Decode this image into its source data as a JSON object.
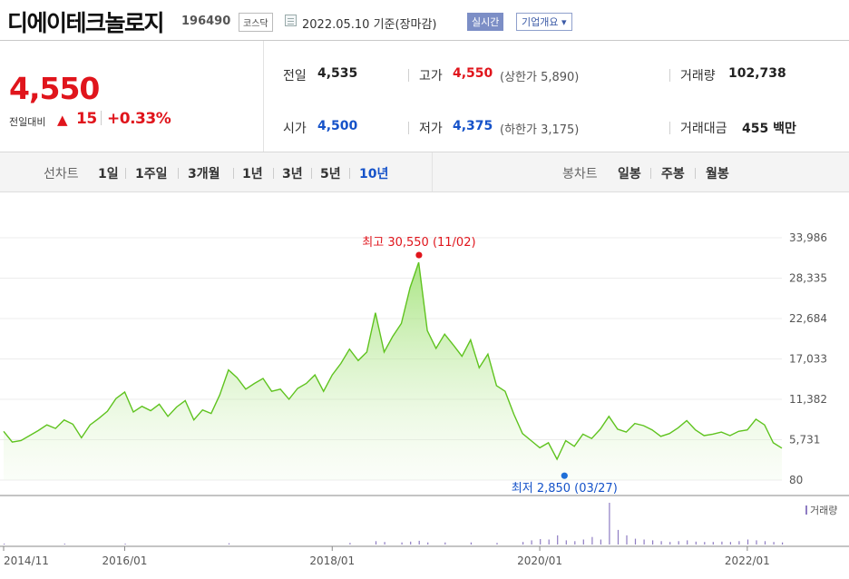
{
  "header": {
    "company": "디에이테크놀로지",
    "code": "196490",
    "market": "코스닥",
    "base_date": "2022.05.10  기준(장마감)",
    "realtime_label": "실시간",
    "company_overview_label": "기업개요 ▾"
  },
  "price": {
    "current": "4,550",
    "change_label": "전일대비",
    "change_arrow": "▲",
    "change_value": "15",
    "change_pct": "+0.33%",
    "color_up": "#e0151c",
    "color_down": "#1552c9"
  },
  "stats": {
    "prev_close": {
      "label": "전일",
      "value": "4,535"
    },
    "open": {
      "label": "시가",
      "value": "4,500"
    },
    "high": {
      "label": "고가",
      "value": "4,550",
      "sub": "(상한가 5,890)"
    },
    "low": {
      "label": "저가",
      "value": "4,375",
      "sub": "(하한가 3,175)"
    },
    "volume": {
      "label": "거래량",
      "value": "102,738"
    },
    "amount": {
      "label": "거래대금",
      "value": "455 백만"
    }
  },
  "periods": {
    "line_label": "선차트",
    "line_items": [
      "1일",
      "1주일",
      "3개월",
      "1년",
      "3년",
      "5년",
      "10년"
    ],
    "selected": "10년",
    "candle_label": "봉차트",
    "candle_items": [
      "일봉",
      "주봉",
      "월봉"
    ]
  },
  "chart_data": {
    "type": "area",
    "series_color": "#5fc31f",
    "y_ticks": [
      "33,986",
      "28,335",
      "22,684",
      "17,033",
      "11,382",
      "5,731",
      "80"
    ],
    "ylim": [
      80,
      33986
    ],
    "x_ticks": [
      "2014/11",
      "2016/01",
      "2018/01",
      "2020/01",
      "2022/01"
    ],
    "x_tick_dates": [
      "2014-11",
      "2016-01",
      "2018-01",
      "2020-01",
      "2022-01"
    ],
    "x_range": [
      "2014-11",
      "2022-05"
    ],
    "max_annotation": "최고 30,550 (11/02)",
    "min_annotation": "최저 2,850 (03/27)",
    "max_point": {
      "date": "2018-11-02",
      "value": 30550
    },
    "min_point": {
      "date": "2020-03-27",
      "value": 2850
    },
    "volume_legend": "거래량",
    "points": [
      [
        "2014-11",
        6900
      ],
      [
        "2014-12",
        5400
      ],
      [
        "2015-01",
        5600
      ],
      [
        "2015-02",
        6300
      ],
      [
        "2015-03",
        7000
      ],
      [
        "2015-04",
        7800
      ],
      [
        "2015-05",
        7300
      ],
      [
        "2015-06",
        8500
      ],
      [
        "2015-07",
        7900
      ],
      [
        "2015-08",
        6000
      ],
      [
        "2015-09",
        7800
      ],
      [
        "2015-10",
        8700
      ],
      [
        "2015-11",
        9700
      ],
      [
        "2015-12",
        11500
      ],
      [
        "2016-01",
        12400
      ],
      [
        "2016-02",
        9600
      ],
      [
        "2016-03",
        10400
      ],
      [
        "2016-04",
        9800
      ],
      [
        "2016-05",
        10700
      ],
      [
        "2016-06",
        9000
      ],
      [
        "2016-07",
        10300
      ],
      [
        "2016-08",
        11200
      ],
      [
        "2016-09",
        8500
      ],
      [
        "2016-10",
        9900
      ],
      [
        "2016-11",
        9400
      ],
      [
        "2016-12",
        12000
      ],
      [
        "2017-01",
        15500
      ],
      [
        "2017-02",
        14400
      ],
      [
        "2017-03",
        12800
      ],
      [
        "2017-04",
        13600
      ],
      [
        "2017-05",
        14300
      ],
      [
        "2017-06",
        12500
      ],
      [
        "2017-07",
        12800
      ],
      [
        "2017-08",
        11400
      ],
      [
        "2017-09",
        12900
      ],
      [
        "2017-10",
        13600
      ],
      [
        "2017-11",
        14800
      ],
      [
        "2017-12",
        12500
      ],
      [
        "2018-01",
        14800
      ],
      [
        "2018-02",
        16400
      ],
      [
        "2018-03",
        18400
      ],
      [
        "2018-04",
        16800
      ],
      [
        "2018-05",
        18000
      ],
      [
        "2018-06",
        23500
      ],
      [
        "2018-07",
        18000
      ],
      [
        "2018-08",
        20200
      ],
      [
        "2018-09",
        22000
      ],
      [
        "2018-10",
        27000
      ],
      [
        "2018-11",
        30550
      ],
      [
        "2018-12",
        21000
      ],
      [
        "2019-01",
        18500
      ],
      [
        "2019-02",
        20500
      ],
      [
        "2019-03",
        19000
      ],
      [
        "2019-04",
        17400
      ],
      [
        "2019-05",
        19700
      ],
      [
        "2019-06",
        15800
      ],
      [
        "2019-07",
        17700
      ],
      [
        "2019-08",
        13300
      ],
      [
        "2019-09",
        12500
      ],
      [
        "2019-10",
        9300
      ],
      [
        "2019-11",
        6600
      ],
      [
        "2019-12",
        5600
      ],
      [
        "2020-01",
        4600
      ],
      [
        "2020-02",
        5300
      ],
      [
        "2020-03",
        3000
      ],
      [
        "2020-04",
        5600
      ],
      [
        "2020-05",
        4800
      ],
      [
        "2020-06",
        6500
      ],
      [
        "2020-07",
        5900
      ],
      [
        "2020-08",
        7200
      ],
      [
        "2020-09",
        9000
      ],
      [
        "2020-10",
        7200
      ],
      [
        "2020-11",
        6800
      ],
      [
        "2020-12",
        8000
      ],
      [
        "2021-01",
        7700
      ],
      [
        "2021-02",
        7100
      ],
      [
        "2021-03",
        6200
      ],
      [
        "2021-04",
        6600
      ],
      [
        "2021-05",
        7400
      ],
      [
        "2021-06",
        8400
      ],
      [
        "2021-07",
        7100
      ],
      [
        "2021-08",
        6300
      ],
      [
        "2021-09",
        6500
      ],
      [
        "2021-10",
        6800
      ],
      [
        "2021-11",
        6300
      ],
      [
        "2021-12",
        6900
      ],
      [
        "2022-01",
        7100
      ],
      [
        "2022-02",
        8600
      ],
      [
        "2022-03",
        7800
      ],
      [
        "2022-04",
        5300
      ],
      [
        "2022-05",
        4550
      ]
    ],
    "volume": [
      [
        "2014-11",
        0.02
      ],
      [
        "2015-06",
        0.02
      ],
      [
        "2016-01",
        0.02
      ],
      [
        "2017-01",
        0.03
      ],
      [
        "2018-03",
        0.04
      ],
      [
        "2018-06",
        0.08
      ],
      [
        "2018-07",
        0.06
      ],
      [
        "2018-09",
        0.05
      ],
      [
        "2018-10",
        0.07
      ],
      [
        "2018-11",
        0.09
      ],
      [
        "2018-12",
        0.05
      ],
      [
        "2019-02",
        0.05
      ],
      [
        "2019-05",
        0.05
      ],
      [
        "2019-08",
        0.04
      ],
      [
        "2019-11",
        0.06
      ],
      [
        "2019-12",
        0.1
      ],
      [
        "2020-01",
        0.13
      ],
      [
        "2020-02",
        0.12
      ],
      [
        "2020-03",
        0.22
      ],
      [
        "2020-04",
        0.1
      ],
      [
        "2020-05",
        0.08
      ],
      [
        "2020-06",
        0.12
      ],
      [
        "2020-07",
        0.18
      ],
      [
        "2020-08",
        0.12
      ],
      [
        "2020-09",
        1.0
      ],
      [
        "2020-10",
        0.35
      ],
      [
        "2020-11",
        0.22
      ],
      [
        "2020-12",
        0.14
      ],
      [
        "2021-01",
        0.12
      ],
      [
        "2021-02",
        0.1
      ],
      [
        "2021-03",
        0.08
      ],
      [
        "2021-04",
        0.06
      ],
      [
        "2021-05",
        0.08
      ],
      [
        "2021-06",
        0.1
      ],
      [
        "2021-07",
        0.07
      ],
      [
        "2021-08",
        0.06
      ],
      [
        "2021-09",
        0.06
      ],
      [
        "2021-10",
        0.07
      ],
      [
        "2021-11",
        0.06
      ],
      [
        "2021-12",
        0.08
      ],
      [
        "2022-01",
        0.12
      ],
      [
        "2022-02",
        0.1
      ],
      [
        "2022-03",
        0.08
      ],
      [
        "2022-04",
        0.06
      ],
      [
        "2022-05",
        0.05
      ]
    ]
  }
}
